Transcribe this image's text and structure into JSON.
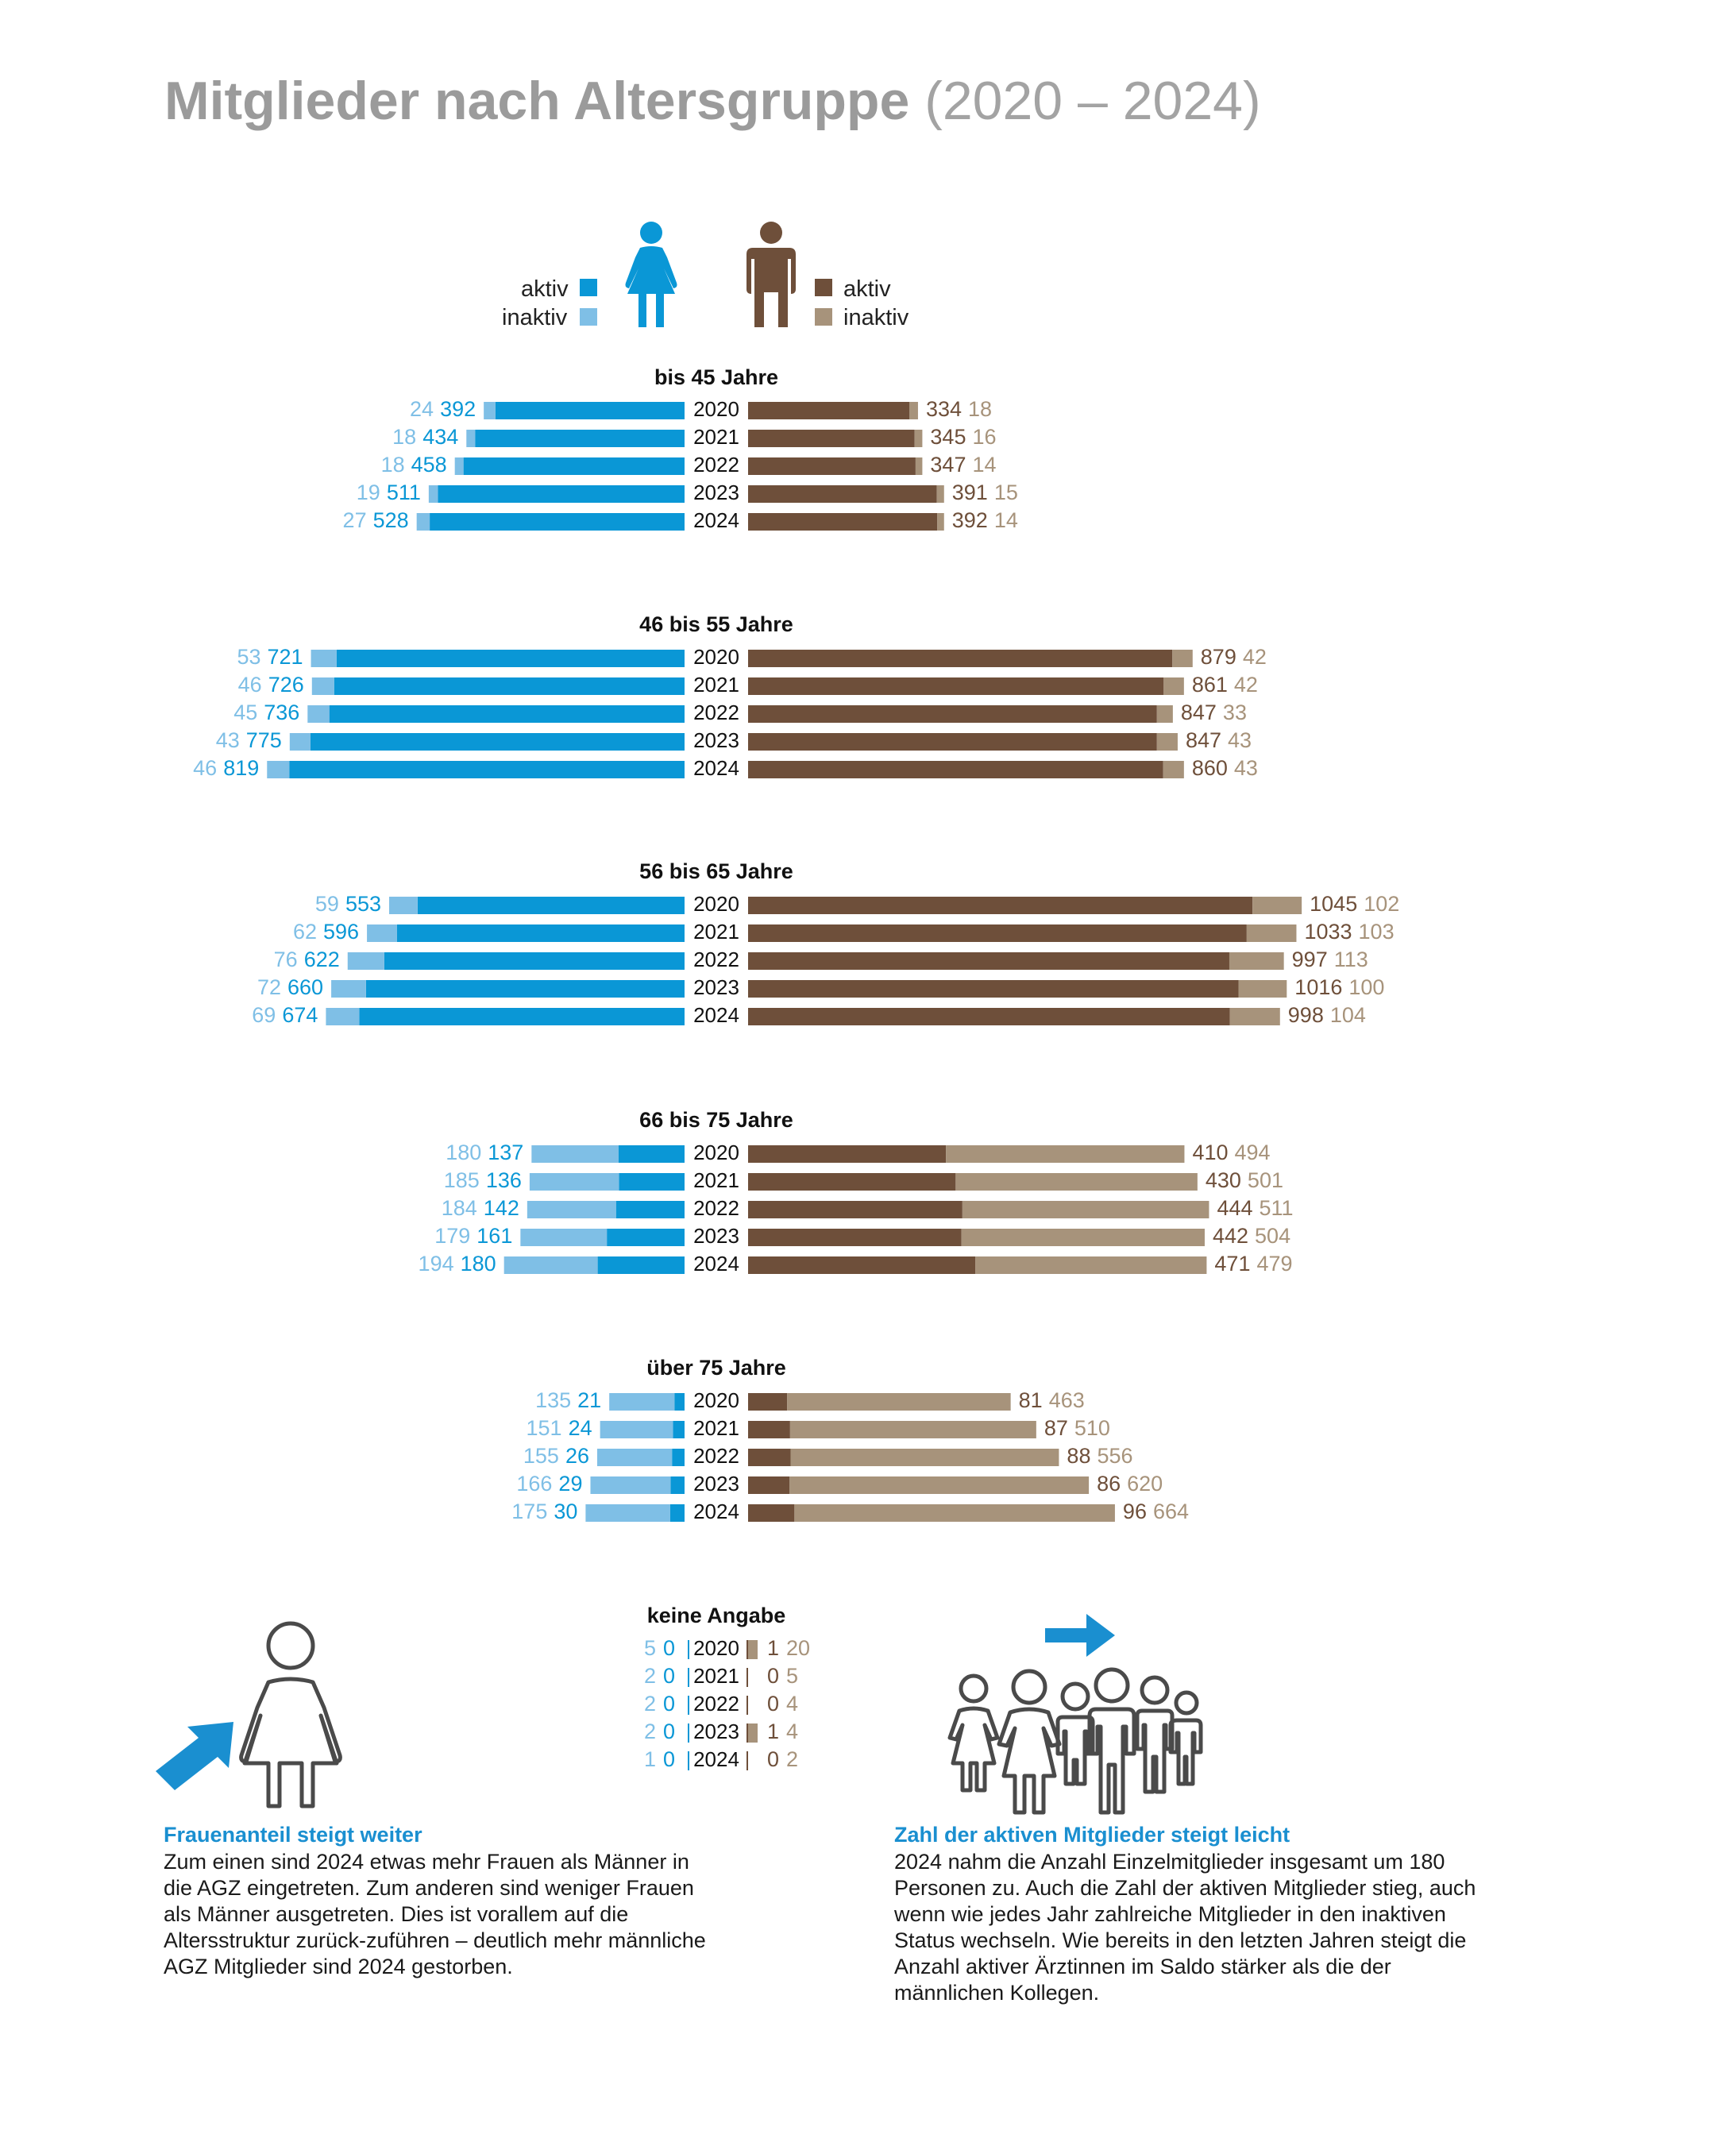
{
  "title": "Mitglieder nach Altersgruppe",
  "subtitle": "(2020 – 2024)",
  "legend": {
    "women": {
      "aktiv": "aktiv",
      "inaktiv": "inaktiv"
    },
    "men": {
      "aktiv": "aktiv",
      "inaktiv": "inaktiv"
    }
  },
  "colors": {
    "women_active": "#0a97d6",
    "women_inactive": "#7fbfe6",
    "men_active": "#6e4f3a",
    "men_inactive": "#a7937b",
    "title": "#9b9b9b",
    "caption": "#1a8fd0",
    "icon_outline": "#4a4a4a"
  },
  "icons": [
    "woman-icon",
    "man-icon",
    "woman-outline-icon",
    "arrow-up-right-icon",
    "group-people-icon",
    "arrow-right-icon"
  ],
  "chart_data": {
    "type": "bar",
    "orientation": "horizontal-diverging-stacked",
    "years": [
      "2020",
      "2021",
      "2022",
      "2023",
      "2024"
    ],
    "groups": [
      {
        "name": "bis 45 Jahre",
        "women_inactive": [
          24,
          18,
          18,
          19,
          27
        ],
        "women_active": [
          392,
          434,
          458,
          511,
          528
        ],
        "men_active": [
          334,
          345,
          347,
          391,
          392
        ],
        "men_inactive": [
          18,
          16,
          14,
          15,
          14
        ]
      },
      {
        "name": "46 bis 55 Jahre",
        "women_inactive": [
          53,
          46,
          45,
          43,
          46
        ],
        "women_active": [
          721,
          726,
          736,
          775,
          819
        ],
        "men_active": [
          879,
          861,
          847,
          847,
          860
        ],
        "men_inactive": [
          42,
          42,
          33,
          43,
          43
        ]
      },
      {
        "name": "56 bis 65 Jahre",
        "women_inactive": [
          59,
          62,
          76,
          72,
          69
        ],
        "women_active": [
          553,
          596,
          622,
          660,
          674
        ],
        "men_active": [
          1045,
          1033,
          997,
          1016,
          998
        ],
        "men_inactive": [
          102,
          103,
          113,
          100,
          104
        ]
      },
      {
        "name": "66 bis 75 Jahre",
        "women_inactive": [
          180,
          185,
          184,
          179,
          194
        ],
        "women_active": [
          137,
          136,
          142,
          161,
          180
        ],
        "men_active": [
          410,
          430,
          444,
          442,
          471
        ],
        "men_inactive": [
          494,
          501,
          511,
          504,
          479
        ]
      },
      {
        "name": "über 75 Jahre",
        "women_inactive": [
          135,
          151,
          155,
          166,
          175
        ],
        "women_active": [
          21,
          24,
          26,
          29,
          30
        ],
        "men_active": [
          81,
          87,
          88,
          86,
          96
        ],
        "men_inactive": [
          463,
          510,
          556,
          620,
          664
        ]
      },
      {
        "name": "keine Angabe",
        "women_inactive": [
          5,
          2,
          2,
          2,
          1
        ],
        "women_active": [
          0,
          0,
          0,
          0,
          0
        ],
        "men_active": [
          1,
          0,
          0,
          1,
          0
        ],
        "men_inactive": [
          20,
          5,
          4,
          4,
          2
        ]
      }
    ]
  },
  "captions": {
    "left": {
      "title": "Frauenanteil steigt weiter",
      "text": "Zum einen sind 2024 etwas mehr Frauen als Männer in die AGZ eingetreten. Zum anderen sind weniger Frauen als Männer ausgetreten. Dies ist vorallem auf die Altersstruktur zurück-zuführen – deutlich mehr männliche AGZ Mitglieder sind 2024 gestorben."
    },
    "right": {
      "title": "Zahl der aktiven Mitglieder steigt leicht",
      "text": "2024 nahm die Anzahl Einzelmitglieder insgesamt um 180 Personen zu. Auch die Zahl der aktiven Mitglieder stieg, auch wenn wie jedes Jahr zahlreiche Mitglieder in den inaktiven Status wechseln. Wie bereits in den letzten Jahren steigt die Anzahl aktiver Ärztinnen im Saldo stärker als die der männlichen Kollegen."
    }
  }
}
